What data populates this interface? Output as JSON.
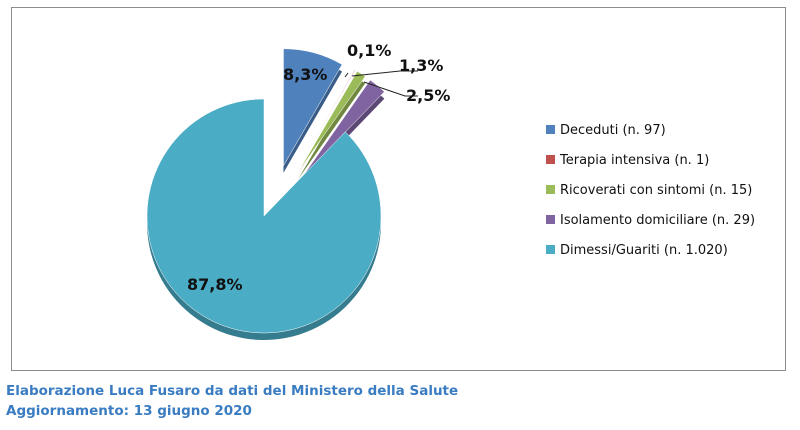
{
  "chart_data": {
    "type": "pie",
    "exploded": true,
    "start_angle": "12 o'clock, clockwise",
    "slices": [
      {
        "name": "Deceduti (n. 97)",
        "value": 97,
        "percent_label": "8,3%",
        "color": "#4f81bd"
      },
      {
        "name": "Terapia intensiva (n. 1)",
        "value": 1,
        "percent_label": "0,1%",
        "color": "#c0504d"
      },
      {
        "name": "Ricoverati con sintomi (n. 15)",
        "value": 15,
        "percent_label": "1,3%",
        "color": "#9bbb59"
      },
      {
        "name": "Isolamento domiciliare (n. 29)",
        "value": 29,
        "percent_label": "2,5%",
        "color": "#8064a2"
      },
      {
        "name": "Dimessi/Guariti (n. 1.020)",
        "value": 1020,
        "percent_label": "87,8%",
        "color": "#4bacc6"
      }
    ],
    "legend_placement": "right"
  },
  "footer": {
    "line1": "Elaborazione Luca Fusaro da dati del Ministero della Salute",
    "line2": "Aggiornamento: 13 giugno 2020"
  }
}
